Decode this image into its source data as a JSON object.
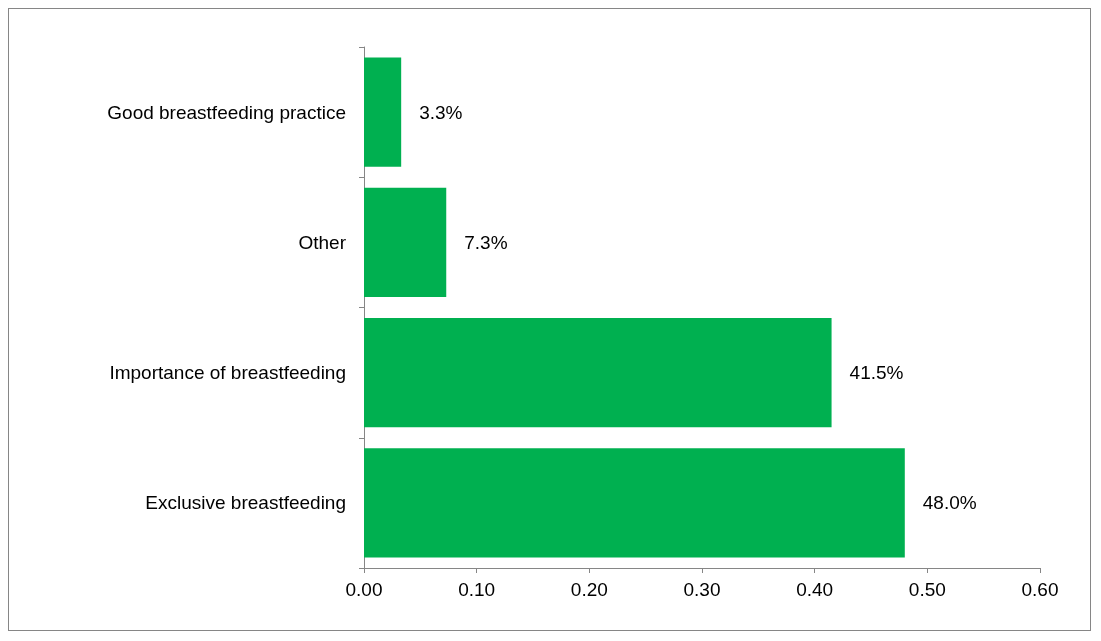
{
  "chart_data": {
    "type": "bar",
    "orientation": "horizontal",
    "categories": [
      "Good breastfeeding practice",
      "Other",
      "Importance of breastfeeding",
      "Exclusive breastfeeding"
    ],
    "values": [
      0.033,
      0.073,
      0.415,
      0.48
    ],
    "value_labels": [
      "3.3%",
      "7.3%",
      "41.5%",
      "48.0%"
    ],
    "color": "#00b050",
    "xlim": [
      0,
      0.6
    ],
    "xticks": [
      {
        "value": 0,
        "label": "0.00"
      },
      {
        "value": 0.1,
        "label": "0.10"
      },
      {
        "value": 0.2,
        "label": "0.20"
      },
      {
        "value": 0.3,
        "label": "0.30"
      },
      {
        "value": 0.4,
        "label": "0.40"
      },
      {
        "value": 0.5,
        "label": "0.50"
      },
      {
        "value": 0.6,
        "label": "0.60"
      }
    ],
    "grid": false
  }
}
